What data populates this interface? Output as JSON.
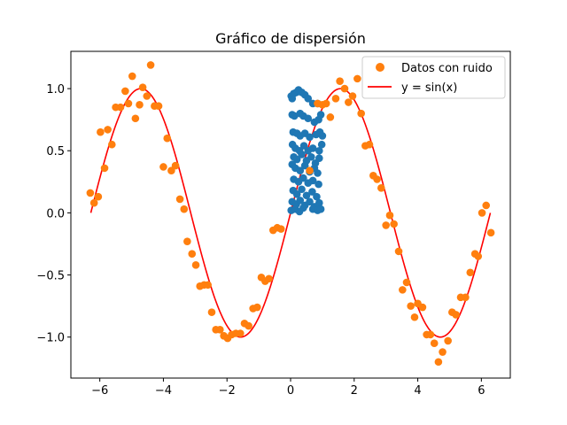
{
  "chart_data": {
    "type": "scatter",
    "title": "Gráfico de dispersión",
    "xlabel": "",
    "ylabel": "",
    "xlim": [
      -6.91,
      6.91
    ],
    "ylim": [
      -1.33,
      1.3
    ],
    "x_ticks": [
      -6,
      -4,
      -2,
      0,
      2,
      4,
      6
    ],
    "x_tick_labels": [
      "−6",
      "−4",
      "−2",
      "0",
      "2",
      "4",
      "6"
    ],
    "y_ticks": [
      -1.0,
      -0.5,
      0.0,
      0.5,
      1.0
    ],
    "y_tick_labels": [
      "−1.0",
      "−0.5",
      "0.0",
      "0.5",
      "1.0"
    ],
    "grid": false,
    "legend_position": "upper right",
    "legend_entries": [
      "Datos con ruido",
      "y = sin(x)"
    ],
    "series": [
      {
        "name": "",
        "kind": "scatter",
        "color": "#1f77b4",
        "points": [
          [
            0.02,
            0.94
          ],
          [
            0.05,
            0.92
          ],
          [
            0.1,
            0.96
          ],
          [
            0.18,
            0.97
          ],
          [
            0.25,
            0.99
          ],
          [
            0.35,
            0.97
          ],
          [
            0.45,
            0.95
          ],
          [
            0.55,
            0.92
          ],
          [
            0.7,
            0.88
          ],
          [
            0.85,
            0.88
          ],
          [
            0.05,
            0.79
          ],
          [
            0.12,
            0.78
          ],
          [
            0.3,
            0.8
          ],
          [
            0.4,
            0.78
          ],
          [
            0.55,
            0.76
          ],
          [
            0.75,
            0.73
          ],
          [
            0.88,
            0.75
          ],
          [
            0.95,
            0.79
          ],
          [
            0.08,
            0.65
          ],
          [
            0.2,
            0.64
          ],
          [
            0.3,
            0.62
          ],
          [
            0.45,
            0.64
          ],
          [
            0.6,
            0.61
          ],
          [
            0.8,
            0.63
          ],
          [
            0.92,
            0.65
          ],
          [
            1.0,
            0.62
          ],
          [
            0.06,
            0.55
          ],
          [
            0.15,
            0.52
          ],
          [
            0.28,
            0.5
          ],
          [
            0.42,
            0.54
          ],
          [
            0.55,
            0.5
          ],
          [
            0.7,
            0.52
          ],
          [
            0.9,
            0.5
          ],
          [
            0.98,
            0.55
          ],
          [
            0.1,
            0.45
          ],
          [
            0.2,
            0.43
          ],
          [
            0.35,
            0.47
          ],
          [
            0.5,
            0.42
          ],
          [
            0.65,
            0.45
          ],
          [
            0.78,
            0.4
          ],
          [
            0.9,
            0.44
          ],
          [
            0.05,
            0.39
          ],
          [
            0.15,
            0.36
          ],
          [
            0.3,
            0.34
          ],
          [
            0.45,
            0.38
          ],
          [
            0.6,
            0.33
          ],
          [
            0.75,
            0.36
          ],
          [
            0.85,
            0.32
          ],
          [
            0.1,
            0.27
          ],
          [
            0.25,
            0.25
          ],
          [
            0.4,
            0.28
          ],
          [
            0.55,
            0.24
          ],
          [
            0.7,
            0.26
          ],
          [
            0.88,
            0.23
          ],
          [
            0.08,
            0.18
          ],
          [
            0.2,
            0.15
          ],
          [
            0.35,
            0.19
          ],
          [
            0.5,
            0.14
          ],
          [
            0.68,
            0.17
          ],
          [
            0.82,
            0.13
          ],
          [
            0.05,
            0.09
          ],
          [
            0.18,
            0.07
          ],
          [
            0.3,
            0.1
          ],
          [
            0.45,
            0.06
          ],
          [
            0.6,
            0.09
          ],
          [
            0.75,
            0.05
          ],
          [
            0.9,
            0.08
          ],
          [
            0.02,
            0.02
          ],
          [
            0.15,
            0.03
          ],
          [
            0.28,
            0.01
          ],
          [
            0.4,
            0.04
          ],
          [
            0.7,
            0.03
          ],
          [
            0.85,
            0.02
          ],
          [
            0.95,
            0.03
          ]
        ]
      },
      {
        "name": "Datos con ruido",
        "kind": "scatter",
        "color": "#ff7f0e",
        "points": [
          [
            -6.3,
            0.16
          ],
          [
            -6.18,
            0.08
          ],
          [
            -6.05,
            0.13
          ],
          [
            -5.98,
            0.65
          ],
          [
            -5.85,
            0.36
          ],
          [
            -5.75,
            0.67
          ],
          [
            -5.62,
            0.55
          ],
          [
            -5.5,
            0.85
          ],
          [
            -5.35,
            0.85
          ],
          [
            -5.2,
            0.98
          ],
          [
            -5.1,
            0.88
          ],
          [
            -4.98,
            1.1
          ],
          [
            -4.88,
            0.76
          ],
          [
            -4.75,
            0.87
          ],
          [
            -4.65,
            1.01
          ],
          [
            -4.52,
            0.94
          ],
          [
            -4.4,
            1.19
          ],
          [
            -4.28,
            0.86
          ],
          [
            -4.15,
            0.86
          ],
          [
            -4.0,
            0.37
          ],
          [
            -3.88,
            0.6
          ],
          [
            -3.75,
            0.34
          ],
          [
            -3.62,
            0.38
          ],
          [
            -3.48,
            0.11
          ],
          [
            -3.35,
            0.03
          ],
          [
            -3.25,
            -0.23
          ],
          [
            -3.1,
            -0.33
          ],
          [
            -2.98,
            -0.42
          ],
          [
            -2.85,
            -0.59
          ],
          [
            -2.72,
            -0.58
          ],
          [
            -2.6,
            -0.58
          ],
          [
            -2.48,
            -0.8
          ],
          [
            -2.35,
            -0.94
          ],
          [
            -2.22,
            -0.94
          ],
          [
            -2.1,
            -0.99
          ],
          [
            -1.98,
            -1.01
          ],
          [
            -1.85,
            -0.98
          ],
          [
            -1.72,
            -0.97
          ],
          [
            -1.58,
            -0.97
          ],
          [
            -1.45,
            -0.89
          ],
          [
            -1.32,
            -0.91
          ],
          [
            -1.18,
            -0.77
          ],
          [
            -1.05,
            -0.76
          ],
          [
            -0.92,
            -0.52
          ],
          [
            -0.8,
            -0.55
          ],
          [
            -0.68,
            -0.53
          ],
          [
            -0.55,
            -0.14
          ],
          [
            -0.42,
            -0.12
          ],
          [
            -0.3,
            -0.13
          ],
          [
            0.6,
            0.34
          ],
          [
            0.85,
            0.88
          ],
          [
            1.0,
            0.87
          ],
          [
            1.12,
            0.88
          ],
          [
            1.25,
            0.77
          ],
          [
            1.42,
            0.92
          ],
          [
            1.55,
            1.06
          ],
          [
            1.7,
            1.0
          ],
          [
            1.82,
            0.89
          ],
          [
            1.95,
            0.94
          ],
          [
            2.1,
            1.08
          ],
          [
            2.22,
            0.8
          ],
          [
            2.35,
            0.54
          ],
          [
            2.48,
            0.55
          ],
          [
            2.6,
            0.3
          ],
          [
            2.72,
            0.27
          ],
          [
            2.85,
            0.2
          ],
          [
            3.0,
            -0.1
          ],
          [
            3.12,
            -0.02
          ],
          [
            3.25,
            -0.09
          ],
          [
            3.4,
            -0.31
          ],
          [
            3.52,
            -0.62
          ],
          [
            3.65,
            -0.56
          ],
          [
            3.78,
            -0.75
          ],
          [
            3.9,
            -0.84
          ],
          [
            4.0,
            -0.73
          ],
          [
            4.15,
            -0.76
          ],
          [
            4.28,
            -0.98
          ],
          [
            4.4,
            -0.98
          ],
          [
            4.52,
            -1.05
          ],
          [
            4.65,
            -1.2
          ],
          [
            4.78,
            -1.12
          ],
          [
            4.95,
            -1.03
          ],
          [
            5.08,
            -0.8
          ],
          [
            5.2,
            -0.82
          ],
          [
            5.35,
            -0.68
          ],
          [
            5.5,
            -0.68
          ],
          [
            5.65,
            -0.48
          ],
          [
            5.8,
            -0.33
          ],
          [
            5.9,
            -0.35
          ],
          [
            6.02,
            0.0
          ],
          [
            6.15,
            0.06
          ],
          [
            6.3,
            -0.16
          ]
        ]
      },
      {
        "name": "y = sin(x)",
        "kind": "line",
        "color": "#ff0000",
        "function": "sin",
        "x_range": [
          -6.283,
          6.283
        ]
      }
    ]
  }
}
